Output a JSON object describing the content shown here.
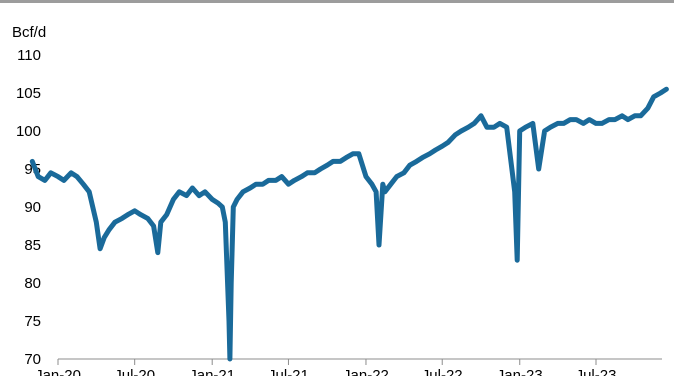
{
  "chart_data": {
    "type": "line",
    "title": "",
    "xlabel": "",
    "ylabel": "Bcf/d",
    "ylim": [
      70,
      110
    ],
    "yticks": [
      70,
      75,
      80,
      85,
      90,
      95,
      100,
      105,
      110
    ],
    "xticks": [
      "Jan-20",
      "Jul-20",
      "Jan-21",
      "Jul-21",
      "Jan-22",
      "Jul-22",
      "Jan-23",
      "Jul-23"
    ],
    "grid": false,
    "legend": "none",
    "color": "#1a6a9a",
    "series": [
      {
        "name": "",
        "x": [
          "2019-11-01",
          "2019-11-15",
          "2019-12-01",
          "2019-12-15",
          "2020-01-01",
          "2020-01-15",
          "2020-02-01",
          "2020-02-15",
          "2020-03-01",
          "2020-03-15",
          "2020-04-01",
          "2020-04-10",
          "2020-04-20",
          "2020-05-01",
          "2020-05-15",
          "2020-06-01",
          "2020-06-15",
          "2020-07-01",
          "2020-07-15",
          "2020-08-01",
          "2020-08-15",
          "2020-08-25",
          "2020-09-01",
          "2020-09-15",
          "2020-10-01",
          "2020-10-15",
          "2020-11-01",
          "2020-11-15",
          "2020-12-01",
          "2020-12-15",
          "2021-01-01",
          "2021-01-15",
          "2021-01-25",
          "2021-02-01",
          "2021-02-10",
          "2021-02-12",
          "2021-02-15",
          "2021-02-20",
          "2021-03-01",
          "2021-03-15",
          "2021-04-01",
          "2021-04-15",
          "2021-05-01",
          "2021-05-15",
          "2021-06-01",
          "2021-06-15",
          "2021-07-01",
          "2021-07-15",
          "2021-08-01",
          "2021-08-15",
          "2021-09-01",
          "2021-09-15",
          "2021-10-01",
          "2021-10-15",
          "2021-11-01",
          "2021-11-15",
          "2021-12-01",
          "2021-12-15",
          "2022-01-01",
          "2022-01-15",
          "2022-01-25",
          "2022-02-01",
          "2022-02-10",
          "2022-02-15",
          "2022-03-01",
          "2022-03-15",
          "2022-04-01",
          "2022-04-15",
          "2022-05-01",
          "2022-05-15",
          "2022-06-01",
          "2022-06-15",
          "2022-07-01",
          "2022-07-15",
          "2022-08-01",
          "2022-08-15",
          "2022-09-01",
          "2022-09-15",
          "2022-10-01",
          "2022-10-15",
          "2022-11-01",
          "2022-11-15",
          "2022-12-01",
          "2022-12-20",
          "2022-12-26",
          "2023-01-01",
          "2023-01-15",
          "2023-02-01",
          "2023-02-15",
          "2023-03-01",
          "2023-03-15",
          "2023-04-01",
          "2023-04-15",
          "2023-05-01",
          "2023-05-15",
          "2023-06-01",
          "2023-06-15",
          "2023-07-01",
          "2023-07-15",
          "2023-08-01",
          "2023-08-15",
          "2023-09-01",
          "2023-09-15",
          "2023-10-01",
          "2023-10-15",
          "2023-11-01",
          "2023-11-15",
          "2023-12-01",
          "2023-12-15"
        ],
        "values": [
          96,
          94,
          93.5,
          94.5,
          94,
          93.5,
          94.5,
          94,
          93,
          92,
          88,
          84.5,
          86,
          87,
          88,
          88.5,
          89,
          89.5,
          89,
          88.5,
          87.5,
          84,
          88,
          89,
          91,
          92,
          91.5,
          92.5,
          91.5,
          92,
          91,
          90.5,
          90,
          88,
          75,
          70,
          80,
          90,
          91,
          92,
          92.5,
          93,
          93,
          93.5,
          93.5,
          94,
          93,
          93.5,
          94,
          94.5,
          94.5,
          95,
          95.5,
          96,
          96,
          96.5,
          97,
          97,
          94,
          93,
          92,
          85,
          93,
          92,
          93,
          94,
          94.5,
          95.5,
          96,
          96.5,
          97,
          97.5,
          98,
          98.5,
          99.5,
          100,
          100.5,
          101,
          102,
          100.5,
          100.5,
          101,
          100.5,
          92,
          83,
          100,
          100.5,
          101,
          95,
          100,
          100.5,
          101,
          101,
          101.5,
          101.5,
          101,
          101.5,
          101,
          101,
          101.5,
          101.5,
          102,
          101.5,
          102,
          102,
          103,
          104.5,
          105,
          105.5
        ]
      }
    ]
  }
}
